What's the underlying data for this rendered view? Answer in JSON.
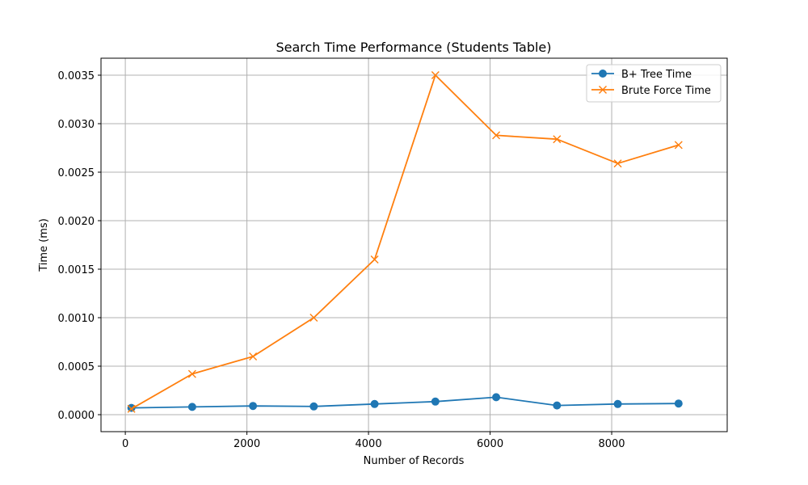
{
  "chart_data": {
    "type": "line",
    "title": "Search Time Performance (Students Table)",
    "xlabel": "Number of Records",
    "ylabel": "Time (ms)",
    "xlim": [
      -400,
      9900
    ],
    "ylim": [
      -0.000175,
      0.003675
    ],
    "xticks": [
      0,
      2000,
      4000,
      6000,
      8000
    ],
    "xtick_labels": [
      "0",
      "2000",
      "4000",
      "6000",
      "8000"
    ],
    "yticks": [
      0,
      0.0005,
      0.001,
      0.0015,
      0.002,
      0.0025,
      0.003,
      0.0035
    ],
    "ytick_labels": [
      "0.0000",
      "0.0005",
      "0.0010",
      "0.0015",
      "0.0020",
      "0.0025",
      "0.0030",
      "0.0035"
    ],
    "grid": true,
    "legend_position": "top-right",
    "x": [
      100,
      1100,
      2100,
      3100,
      4100,
      5100,
      6100,
      7100,
      8100,
      9100
    ],
    "series": [
      {
        "name": "B+ Tree Time",
        "marker": "circle",
        "color": "#1f77b4",
        "values": [
          7e-05,
          8e-05,
          9e-05,
          8.5e-05,
          0.00011,
          0.000135,
          0.00018,
          9.5e-05,
          0.00011,
          0.000115
        ]
      },
      {
        "name": "Brute Force Time",
        "marker": "x",
        "color": "#ff7f0e",
        "values": [
          6e-05,
          0.00042,
          0.0006,
          0.001,
          0.0016,
          0.0035,
          0.00288,
          0.00284,
          0.00259,
          0.00278
        ]
      }
    ]
  }
}
